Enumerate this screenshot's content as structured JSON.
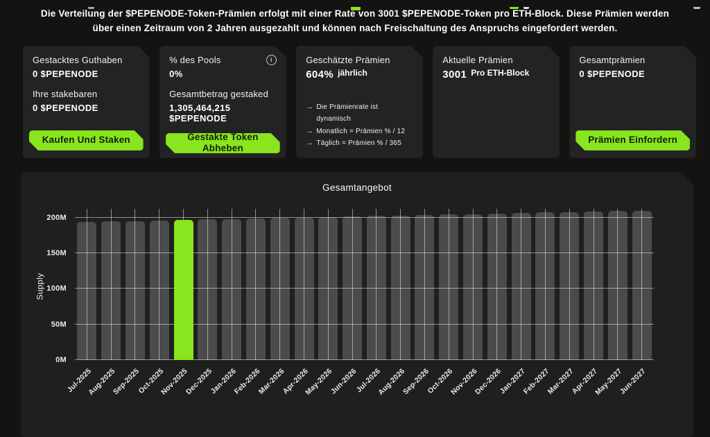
{
  "colors": {
    "accent": "#89E51D",
    "page_bg": "#131311",
    "card_bg": "#232323",
    "panel_bg": "#1F1F1F",
    "bar_gray": "#4B4B4B",
    "button_text": "#152005",
    "grid_line": "rgba(255,255,255,0.5)"
  },
  "header_fragments": [
    {
      "x": 127,
      "w": 9,
      "h": 3,
      "color": "#A9A9A9"
    },
    {
      "x": 506,
      "w": 14,
      "h": 5,
      "color": "#89E51D"
    },
    {
      "x": 735,
      "w": 13,
      "h": 3,
      "color": "#89E51D"
    },
    {
      "x": 755,
      "w": 8,
      "h": 3,
      "color": "#E0E0E0"
    },
    {
      "x": 1000,
      "w": 10,
      "h": 3,
      "color": "#BDBDBD"
    }
  ],
  "intro": {
    "parts": [
      {
        "text": "Die Verteilung der ",
        "bold": false
      },
      {
        "text": "$PEPENODE",
        "bold": true
      },
      {
        "text": "-Token-Prämien erfolgt mit einer Rate von 3001 ",
        "bold": false
      },
      {
        "text": "$PEPENODE",
        "bold": true
      },
      {
        "text": "-Token pro ETH-Block. Diese Prämien werden über einen Zeitraum von 2 Jahren ausgezahlt und können nach Freischaltung des Anspruchs eingefordert werden.",
        "bold": false
      }
    ]
  },
  "cards": {
    "staked_balance": {
      "label1": "Gestacktes Guthaben",
      "value1": "0 $PEPENODE",
      "label2": "Ihre stakebaren",
      "value2": "0 $PEPENODE",
      "button": "Kaufen Und Staken"
    },
    "pool_share": {
      "label1": "% des Pools",
      "value1": "0%",
      "label2": "Gesamtbetrag gestaked",
      "value2": "1,305,464,215 $PEPENODE",
      "info_icon": "i",
      "button": "Gestakte Token Abheben"
    },
    "estimated_rewards": {
      "label": "Geschätzte Prämien",
      "value": "604%",
      "suffix": "jährlich",
      "arrow": "→",
      "notes": [
        "Die Prämienrate ist dynamisch",
        "Monatlich = Prämien % / 12",
        "Täglich = Prämien % / 365"
      ]
    },
    "current_rewards": {
      "label": "Aktuelle Prämien",
      "value": "3001",
      "suffix": "Pro ETH-Block"
    },
    "total_rewards": {
      "label": "Gesamtprämien",
      "value": "0 $PEPENODE",
      "button": "Prämien Einfordern"
    }
  },
  "chart_data": {
    "type": "bar",
    "title": "Gesamtangebot",
    "xlabel": "",
    "ylabel": "Supply",
    "ylim": [
      0,
      213
    ],
    "y_ticks": [
      "0M",
      "50M",
      "100M",
      "150M",
      "200M"
    ],
    "grid": "on",
    "legend": "none",
    "highlight_index": 4,
    "categories": [
      "Jul-2025",
      "Aug-2025",
      "Sep-2025",
      "Oct-2025",
      "Nov-2025",
      "Dec-2025",
      "Jan-2026",
      "Feb-2026",
      "Mar-2026",
      "Apr-2026",
      "May-2026",
      "Jun-2026",
      "Jul-2026",
      "Aug-2026",
      "Sep-2026",
      "Oct-2026",
      "Nov-2026",
      "Dec-2026",
      "Jan-2027",
      "Feb-2027",
      "Mar-2027",
      "Apr-2027",
      "May-2027",
      "Jun-2027"
    ],
    "values": [
      194.0,
      194.7,
      195.4,
      196.1,
      196.8,
      197.5,
      198.2,
      198.9,
      199.6,
      200.3,
      201.0,
      201.7,
      202.4,
      203.1,
      203.8,
      204.5,
      205.2,
      205.9,
      206.6,
      207.3,
      208.0,
      208.7,
      209.4,
      210.1
    ]
  }
}
